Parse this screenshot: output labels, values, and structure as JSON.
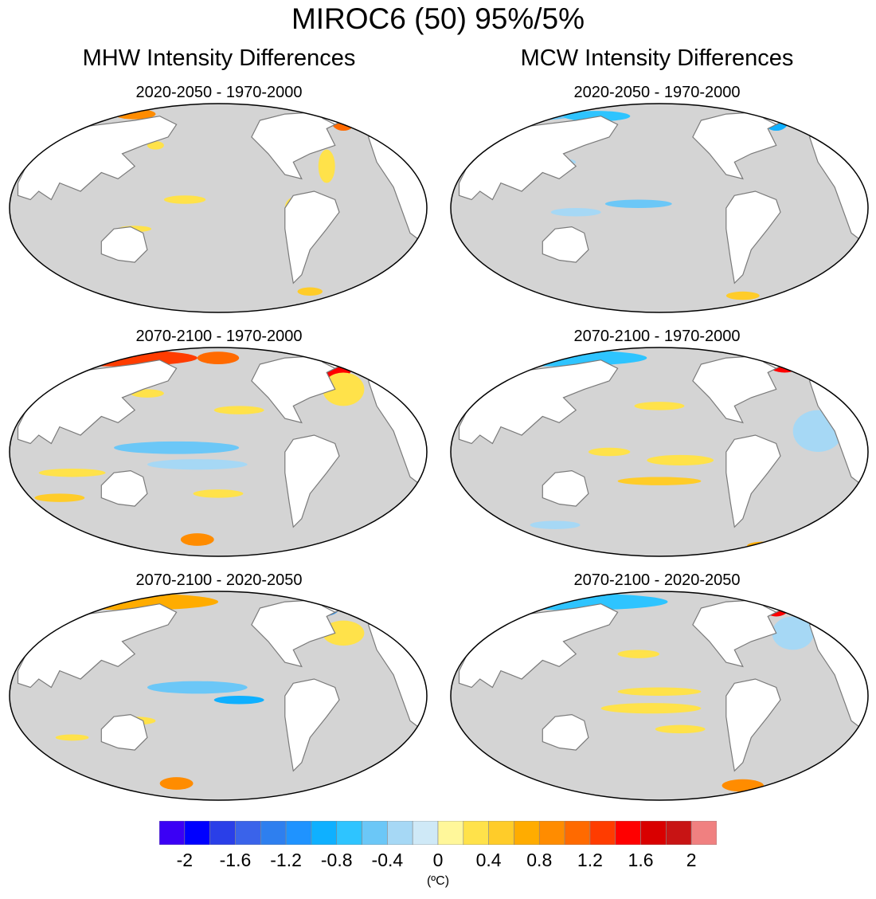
{
  "title": "MIROC6 (50) 95%/5%",
  "columns": [
    {
      "title": "MHW Intensity Differences"
    },
    {
      "title": "MCW Intensity Differences"
    }
  ],
  "panels": [
    {
      "label": "2020-2050 - 1970-2000",
      "column": 0,
      "row": 0
    },
    {
      "label": "2020-2050 - 1970-2000",
      "column": 1,
      "row": 0
    },
    {
      "label": "2070-2100 - 1970-2000",
      "column": 0,
      "row": 1
    },
    {
      "label": "2070-2100 - 1970-2000",
      "column": 1,
      "row": 1
    },
    {
      "label": "2070-2100 - 2020-2050",
      "column": 0,
      "row": 2
    },
    {
      "label": "2070-2100 - 2020-2050",
      "column": 1,
      "row": 2
    }
  ],
  "colorbar": {
    "units": "(ºC)",
    "colors": [
      "#3b00f5",
      "#0000ff",
      "#2a3fe8",
      "#3a63ea",
      "#2e7fef",
      "#1f93ff",
      "#0fb0ff",
      "#2ec4ff",
      "#6bc7f7",
      "#a6d8f5",
      "#cfe9f7",
      "#fff79a",
      "#ffe24a",
      "#ffcc29",
      "#ffac00",
      "#ff8c00",
      "#ff6a00",
      "#ff3c00",
      "#ff0000",
      "#d90000",
      "#c81414",
      "#f08080"
    ],
    "tick_labels": [
      "-2",
      "-1.6",
      "-1.2",
      "-0.8",
      "-0.4",
      "0",
      "0.4",
      "0.8",
      "1.2",
      "1.6",
      "2"
    ],
    "tick_values": [
      -2,
      -1.6,
      -1.2,
      -0.8,
      -0.4,
      0,
      0.4,
      0.8,
      1.2,
      1.6,
      2
    ]
  },
  "colors": {
    "ocean": "#d4d4d4",
    "land": "#ffffff",
    "coast": "#7a7a7a"
  }
}
